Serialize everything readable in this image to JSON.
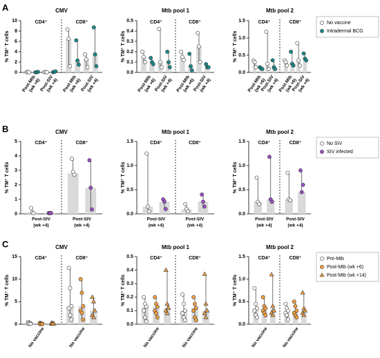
{
  "chart_data": [
    {
      "type": "dot_bar",
      "panel": "A",
      "title": "CMV",
      "ylabel": "% TM⁺ T cells",
      "subsets": [
        "CD4⁺",
        "CD8⁺"
      ],
      "bar_color": "#d9d9d9",
      "categories": [
        [
          "Post-Mtb",
          "(wk +6)"
        ],
        [
          "Post-SIV",
          "(wk +4)"
        ],
        [
          "Post-Mtb",
          "(wk +6)"
        ],
        [
          "Post-SIV",
          "(wk +4)"
        ]
      ],
      "ylim": [
        0,
        10
      ],
      "yticks": [
        0,
        2,
        4,
        6,
        8,
        10
      ],
      "series": [
        {
          "color": "#ffffff",
          "marker": "circle",
          "values": [
            0.05,
            0.05,
            6.5,
            2.5
          ],
          "points": [
            [
              0.05,
              0.1,
              0.02
            ],
            [
              0.05,
              0.1,
              0.03
            ],
            [
              8.3,
              6.5,
              1.2
            ],
            [
              3.5,
              2.5,
              1
            ]
          ]
        },
        {
          "color": "#1a8a8a",
          "marker": "circle",
          "values": [
            0.05,
            0.1,
            2.3,
            3.5
          ],
          "points": [
            [
              0.02,
              0.05,
              0.1
            ],
            [
              0.05,
              0.1,
              0.2
            ],
            [
              6.2,
              2.3,
              1.5
            ],
            [
              8.7,
              3.5,
              1.2
            ]
          ]
        }
      ]
    },
    {
      "type": "dot_bar",
      "title": "Mtb pool 1",
      "ylabel": "% TM⁺ T cells",
      "subsets": [
        "CD4⁺",
        "CD8⁺"
      ],
      "bar_color": "#d9d9d9",
      "categories": [
        [
          "Post-Mtb",
          "(wk +6)"
        ],
        [
          "Post-SIV",
          "(wk +4)"
        ],
        [
          "Post-Mtb",
          "(wk +6)"
        ],
        [
          "Post-SIV",
          "(wk +4)"
        ]
      ],
      "ylim": [
        0,
        0.5
      ],
      "yticks": [
        {
          "value": 0,
          "label": "0.0"
        },
        0.1,
        0.2,
        0.3,
        0.4,
        0.5
      ],
      "series": [
        {
          "color": "#ffffff",
          "marker": "circle",
          "values": [
            0.15,
            0.1,
            0.15,
            0.25
          ],
          "points": [
            [
              0.2,
              0.15,
              0.1
            ],
            [
              0.42,
              0.1,
              0.05
            ],
            [
              0.2,
              0.15,
              0.12
            ],
            [
              0.38,
              0.25,
              0.1
            ]
          ]
        },
        {
          "color": "#1a8a8a",
          "marker": "circle",
          "values": [
            0.1,
            0.1,
            0.06,
            0.05
          ],
          "points": [
            [
              0.14,
              0.1,
              0.08
            ],
            [
              0.2,
              0.1,
              0.05
            ],
            [
              0.18,
              0.06,
              0.02
            ],
            [
              0.08,
              0.05,
              0.05
            ]
          ]
        }
      ]
    },
    {
      "type": "dot_bar",
      "title": "Mtb pool 2",
      "ylabel": "% TM⁺ T cells",
      "subsets": [
        "CD4⁺",
        "CD8⁺"
      ],
      "bar_color": "#d9d9d9",
      "categories": [
        [
          "Post-Mtb",
          "(wk +6)"
        ],
        [
          "Post-SIV",
          "(wk +4)"
        ],
        [
          "Post-Mtb",
          "(wk +6)"
        ],
        [
          "Post-SIV",
          "(wk +4)"
        ]
      ],
      "ylim": [
        0,
        1.5
      ],
      "yticks": [
        {
          "value": 0,
          "label": "0.0"
        },
        0.5,
        {
          "value": 1,
          "label": "1.0"
        },
        1.5
      ],
      "legend": true,
      "series": [
        {
          "name": "No vaccine",
          "color": "#ffffff",
          "marker": "circle",
          "values": [
            0.3,
            0.25,
            0.3,
            0.35
          ],
          "points": [
            [
              0.35,
              0.3,
              0.15
            ],
            [
              1.18,
              0.25,
              0.1
            ],
            [
              0.35,
              0.3,
              0.2
            ],
            [
              0.85,
              0.35,
              0.2
            ]
          ]
        },
        {
          "name": "Intradermal BCG",
          "color": "#1a8a8a",
          "marker": "circle",
          "values": [
            0.12,
            0.15,
            0.25,
            0.4
          ],
          "points": [
            [
              0.15,
              0.12,
              0.1
            ],
            [
              0.35,
              0.15,
              0.1
            ],
            [
              0.6,
              0.25,
              0.2
            ],
            [
              0.55,
              0.4,
              0.35
            ]
          ]
        }
      ]
    },
    {
      "type": "dot_bar",
      "panel": "B",
      "title": "CMV",
      "ylabel": "% TM⁺ T cells",
      "subsets": [
        "CD4⁺",
        "CD8⁺"
      ],
      "bar_color": "#d9d9d9",
      "categories": [
        [
          "Post-SIV",
          "(wk +4)"
        ],
        [
          "Post-SIV",
          "(wk +4)"
        ]
      ],
      "ylim": [
        0,
        5
      ],
      "yticks": [
        0,
        1,
        2,
        3,
        4,
        5
      ],
      "series": [
        {
          "color": "#ffffff",
          "marker": "circle",
          "values": [
            0.1,
            2.8
          ],
          "points": [
            [
              0.4,
              0.1,
              0.05
            ],
            [
              3.8,
              2.9,
              2.7
            ]
          ]
        },
        {
          "color": "#9b4fc9",
          "marker": "circle",
          "values": [
            0.05,
            1.8
          ],
          "points": [
            [
              0.05,
              0.05,
              0.05
            ],
            [
              3.7,
              1.8,
              0.3
            ]
          ]
        }
      ]
    },
    {
      "type": "dot_bar",
      "title": "Mtb pool 1",
      "ylabel": "% TM⁺ T cells",
      "subsets": [
        "CD4⁺",
        "CD8⁺"
      ],
      "bar_color": "#d9d9d9",
      "categories": [
        [
          "Post-SIV",
          "(wk +4)"
        ],
        [
          "Post-SIV",
          "(wk +4)"
        ]
      ],
      "ylim": [
        0,
        1.5
      ],
      "yticks": [
        {
          "value": 0,
          "label": "0.0"
        },
        0.5,
        {
          "value": 1,
          "label": "1.0"
        },
        1.5
      ],
      "series": [
        {
          "color": "#ffffff",
          "marker": "circle",
          "values": [
            0.15,
            0.1
          ],
          "points": [
            [
              1.25,
              0.15,
              0.05
            ],
            [
              0.2,
              0.1,
              0.05
            ]
          ]
        },
        {
          "color": "#9b4fc9",
          "marker": "circle",
          "values": [
            0.25,
            0.25
          ],
          "points": [
            [
              0.3,
              0.25,
              0.1
            ],
            [
              0.4,
              0.25,
              0.15
            ]
          ]
        }
      ]
    },
    {
      "type": "dot_bar",
      "title": "Mtb pool 2",
      "ylabel": "% TM⁺ T cells",
      "subsets": [
        "CD4⁺",
        "CD8⁺"
      ],
      "bar_color": "#d9d9d9",
      "categories": [
        [
          "Post-SIV",
          "(wk +4)"
        ],
        [
          "Post-SIV",
          "(wk +4)"
        ]
      ],
      "ylim": [
        0,
        1.5
      ],
      "yticks": [
        {
          "value": 0,
          "label": "0.0"
        },
        0.5,
        {
          "value": 1,
          "label": "1.0"
        },
        1.5
      ],
      "legend": true,
      "series": [
        {
          "name": "No SIV",
          "color": "#ffffff",
          "marker": "circle",
          "values": [
            0.25,
            0.3
          ],
          "points": [
            [
              0.75,
              0.25,
              0.2
            ],
            [
              0.85,
              0.3,
              0.28
            ]
          ]
        },
        {
          "name": "SIV infected",
          "color": "#9b4fc9",
          "marker": "circle",
          "values": [
            0.3,
            0.45
          ],
          "points": [
            [
              1.18,
              0.3,
              0.25
            ],
            [
              0.9,
              0.45,
              0.6
            ]
          ]
        }
      ]
    },
    {
      "type": "dot_bar",
      "panel": "C",
      "title": "CMV",
      "ylabel": "% TM⁺ T cells",
      "subsets": [
        "CD4⁺",
        "CD8⁺"
      ],
      "bar_color": "#d9d9d9",
      "categories": [
        [
          "No vaccine"
        ],
        [
          "No vaccine"
        ]
      ],
      "ylim": [
        0,
        15
      ],
      "yticks": [
        0,
        5,
        10,
        15
      ],
      "series": [
        {
          "color": "#ffffff",
          "marker": "circle",
          "values": [
            0.2,
            4
          ],
          "points": [
            [
              0.5,
              0.3,
              0.2,
              0.1,
              0.1,
              0.05
            ],
            [
              12.5,
              8,
              4,
              3.5,
              2,
              1
            ]
          ]
        },
        {
          "color": "#f4a040",
          "marker": "circle",
          "values": [
            0.1,
            4
          ],
          "points": [
            [
              0.3,
              0.2,
              0.1,
              0.05,
              0.05,
              0.02
            ],
            [
              10,
              7,
              4,
              3,
              2.5,
              1
            ]
          ]
        },
        {
          "color": "#f4a040",
          "marker": "triangle",
          "values": [
            0.1,
            3
          ],
          "points": [
            [
              0.3,
              0.2,
              0.1,
              0.05,
              0.1
            ],
            [
              6,
              5,
              3,
              2,
              1.5
            ]
          ]
        }
      ]
    },
    {
      "type": "dot_bar",
      "title": "Mtb pool 1",
      "ylabel": "% TM⁺ T cells",
      "subsets": [
        "CD4⁺",
        "CD8⁺"
      ],
      "bar_color": "#d9d9d9",
      "categories": [
        [
          "No vaccine"
        ],
        [
          "No vaccine"
        ]
      ],
      "ylim": [
        0,
        0.5
      ],
      "yticks": [
        {
          "value": 0,
          "label": "0.0"
        },
        0.1,
        0.2,
        0.3,
        0.4,
        0.5
      ],
      "series": [
        {
          "color": "#ffffff",
          "marker": "circle",
          "values": [
            0.13,
            0.1
          ],
          "points": [
            [
              0.2,
              0.15,
              0.13,
              0.1,
              0.05,
              0.02
            ],
            [
              0.22,
              0.15,
              0.1,
              0.08,
              0.05,
              0.03
            ]
          ]
        },
        {
          "color": "#f4a040",
          "marker": "circle",
          "values": [
            0.13,
            0.12
          ],
          "points": [
            [
              0.2,
              0.15,
              0.13,
              0.1,
              0.08,
              0.05
            ],
            [
              0.2,
              0.15,
              0.12,
              0.1,
              0.05,
              0.03
            ]
          ]
        },
        {
          "color": "#f4a040",
          "marker": "triangle",
          "values": [
            0.12,
            0.1
          ],
          "points": [
            [
              0.4,
              0.15,
              0.12,
              0.1,
              0.08
            ],
            [
              0.37,
              0.15,
              0.1,
              0.08,
              0.05
            ]
          ]
        }
      ]
    },
    {
      "type": "dot_bar",
      "title": "Mtb pool 2",
      "ylabel": "% TM⁺ T cells",
      "subsets": [
        "CD4⁺",
        "CD8⁺"
      ],
      "bar_color": "#d9d9d9",
      "categories": [
        [
          "No vaccine"
        ],
        [
          "No vaccine"
        ]
      ],
      "ylim": [
        0,
        1.5
      ],
      "yticks": [
        {
          "value": 0,
          "label": "0.0"
        },
        0.5,
        {
          "value": 1,
          "label": "1.0"
        },
        1.5
      ],
      "legend": true,
      "series": [
        {
          "name": "Pre-Mtb",
          "color": "#ffffff",
          "marker": "circle",
          "values": [
            0.35,
            0.3
          ],
          "points": [
            [
              0.8,
              0.45,
              0.35,
              0.3,
              0.2,
              0.15
            ],
            [
              0.45,
              0.35,
              0.3,
              0.25,
              0.2,
              0.1
            ]
          ]
        },
        {
          "name": "Post-Mtb (wk +6)",
          "color": "#f4a040",
          "marker": "circle",
          "values": [
            0.35,
            0.3
          ],
          "points": [
            [
              0.6,
              0.4,
              0.35,
              0.3,
              0.25,
              0.2
            ],
            [
              0.5,
              0.4,
              0.3,
              0.25,
              0.2,
              0.15
            ]
          ]
        },
        {
          "name": "Post-Mtb (wk +14)",
          "color": "#f4a040",
          "marker": "triangle",
          "values": [
            0.35,
            0.3
          ],
          "points": [
            [
              1.1,
              0.4,
              0.3,
              0.25,
              0.2
            ],
            [
              0.7,
              0.35,
              0.3,
              0.25,
              0.2
            ]
          ]
        }
      ]
    }
  ]
}
